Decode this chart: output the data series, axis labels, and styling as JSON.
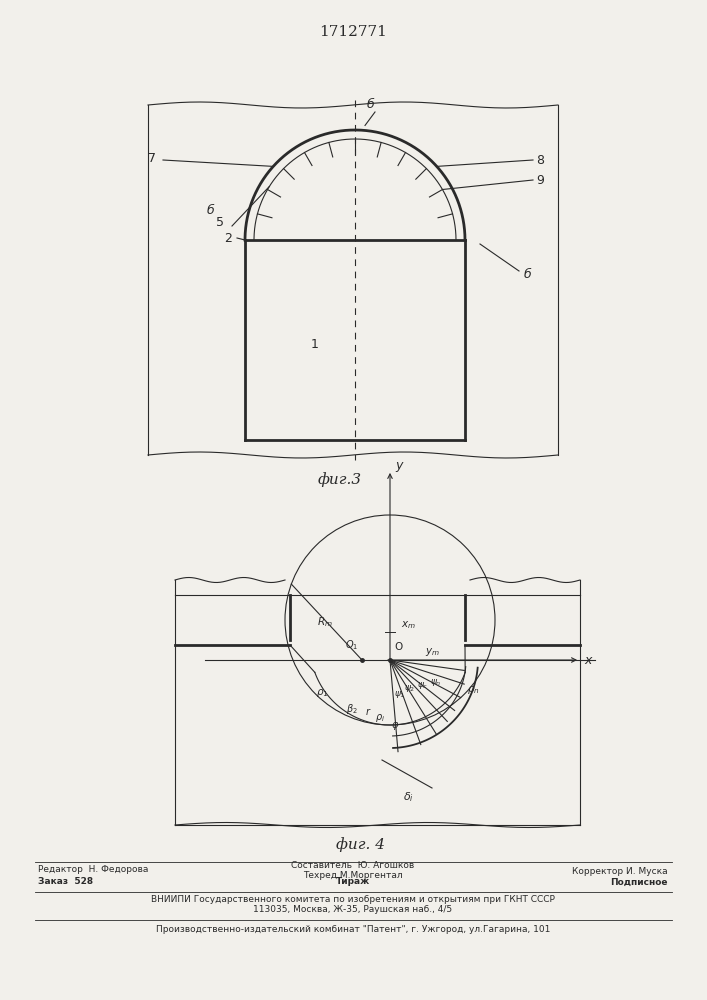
{
  "title": "1712771",
  "fig3_label": "фиг.3",
  "fig4_label": "фиг. 4",
  "bg_color": "#f2f0eb",
  "line_color": "#2a2a2a",
  "footer": {
    "editor": "Редактор  Н. Федорова",
    "author": "Составитель  Ю. Агошков",
    "techred": "Техред М.Моргентал",
    "corrector": "Корректор И. Муска",
    "zakaz": "Заказ  528",
    "tirazh": "Тираж",
    "podpisnoe": "Подписное",
    "vniip1": "ВНИИПИ Государственного комитета по изобретениям и открытиям при ГКНТ СССР",
    "vniip2": "113035, Москва, Ж-35, Раушская наб., 4/5",
    "patent": "Производственно-издательский комбинат \"Патент\", г. Ужгород, ул.Гагарина, 101"
  }
}
